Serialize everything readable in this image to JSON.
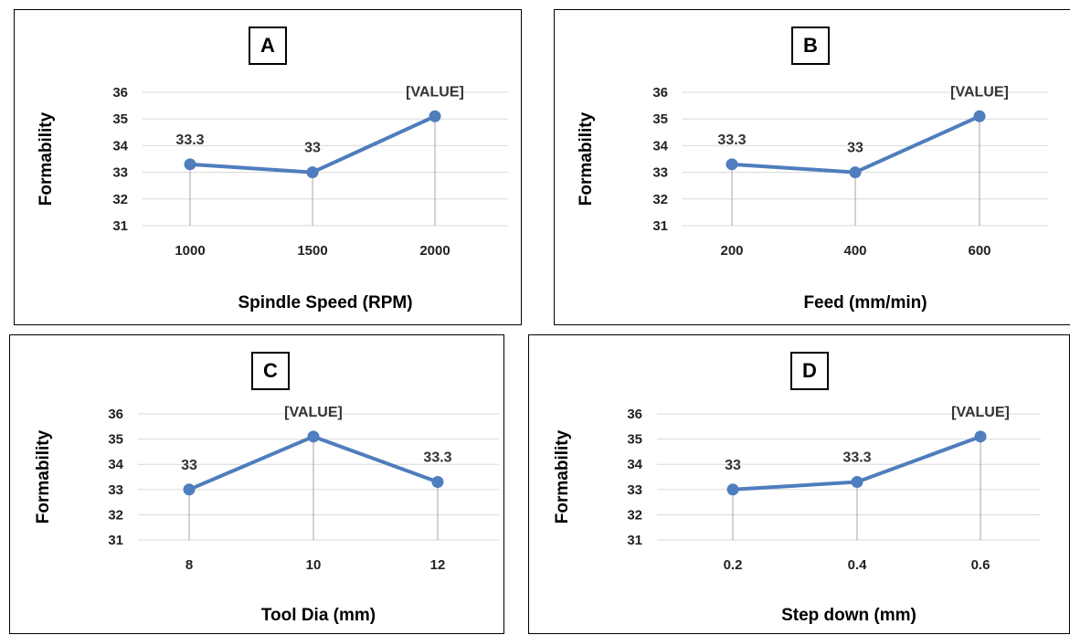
{
  "style": {
    "line_color": "#4F7DBD",
    "grid_color": "#d9d9d9",
    "drop_color": "#a6a6a6",
    "highlight_label_color": "#e8231a"
  },
  "chart_data": [
    {
      "type": "line",
      "panel": "A",
      "categories": [
        "1000",
        "1500",
        "2000"
      ],
      "values": [
        33.3,
        33,
        35.1
      ],
      "data_labels": [
        "33.3",
        "33",
        "[VALUE]"
      ],
      "xlabel": "Spindle Speed (RPM)",
      "ylabel": "Formability",
      "ylim": [
        31,
        36
      ],
      "yticks": [
        "36",
        "35",
        "34",
        "33",
        "32",
        "31"
      ],
      "grid": true
    },
    {
      "type": "line",
      "panel": "B",
      "categories": [
        "200",
        "400",
        "600"
      ],
      "values": [
        33.3,
        33,
        35.1
      ],
      "data_labels": [
        "33.3",
        "33",
        "[VALUE]"
      ],
      "xlabel": "Feed (mm/min)",
      "ylabel": "Formability",
      "ylim": [
        31,
        36
      ],
      "yticks": [
        "36",
        "35",
        "34",
        "33",
        "32",
        "31"
      ],
      "grid": true
    },
    {
      "type": "line",
      "panel": "C",
      "categories": [
        "8",
        "10",
        "12"
      ],
      "values": [
        33,
        35.1,
        33.3
      ],
      "data_labels": [
        "33",
        "[VALUE]",
        "33.3"
      ],
      "xlabel": "Tool Dia (mm)",
      "ylabel": "Formability",
      "ylim": [
        31,
        36
      ],
      "yticks": [
        "36",
        "35",
        "34",
        "33",
        "32",
        "31"
      ],
      "grid": true
    },
    {
      "type": "line",
      "panel": "D",
      "categories": [
        "0.2",
        "0.4",
        "0.6"
      ],
      "values": [
        33,
        33.3,
        35.1
      ],
      "data_labels": [
        "33",
        "33.3",
        "[VALUE]"
      ],
      "xlabel": "Step down  (mm)",
      "ylabel": "Formability",
      "ylim": [
        31,
        36
      ],
      "yticks": [
        "36",
        "35",
        "34",
        "33",
        "32",
        "31"
      ],
      "grid": true
    }
  ]
}
